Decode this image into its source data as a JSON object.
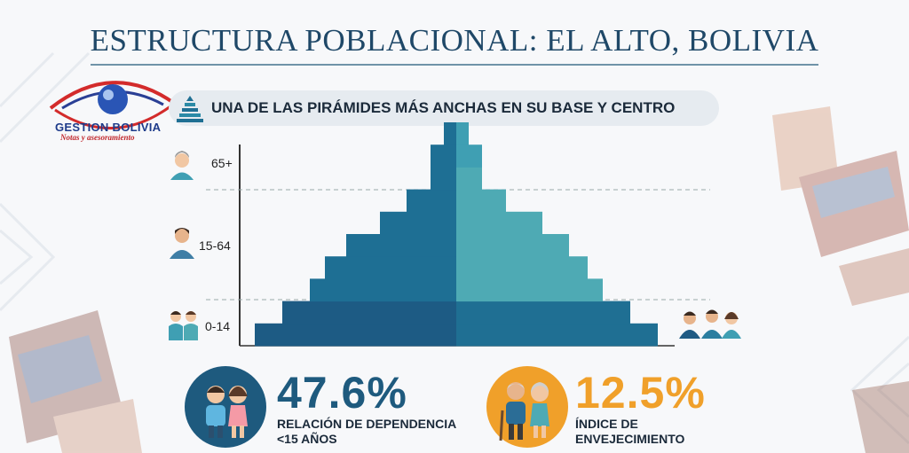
{
  "title": "ESTRUCTURA POBLACIONAL: EL ALTO, BOLIVIA",
  "logo": {
    "name": "GESTION BOLIVIA",
    "tagline": "Notas y asesoramiento"
  },
  "subtitle": "UNA DE LAS PIRÁMIDES MÁS ANCHAS EN SU BASE Y CENTRO",
  "chart_data": {
    "type": "population-pyramid",
    "age_groups": [
      "65+",
      "15-64",
      "0-14"
    ],
    "bands": [
      "0-14",
      "0-14",
      "15-64",
      "15-64",
      "15-64",
      "15-64",
      "15-64",
      "15-64",
      "65+",
      "65+"
    ],
    "left_values": [
      227,
      196,
      165,
      148,
      124,
      86,
      56,
      29,
      29,
      14
    ],
    "right_values": [
      227,
      196,
      165,
      148,
      127,
      97,
      56,
      29,
      29,
      14
    ],
    "left_color_by_group": {
      "0-14": "#1d5b84",
      "15-64": "#1e6f94",
      "65+": "#1e6f94"
    },
    "right_color_by_group": {
      "0-14": "#1f6f93",
      "15-64": "#4eaab4",
      "65+": "#3f9fb3"
    },
    "units": "relative width"
  },
  "stats": [
    {
      "value": "47.6%",
      "label_line1": "RELACIÓN DE DEPENDENCIA",
      "label_line2": "<15 AÑOS",
      "color": "#1e5a7e"
    },
    {
      "value": "12.5%",
      "label_line1": "ÍNDICE DE",
      "label_line2": "ENVEJECIMIENTO",
      "color": "#f0a02a"
    }
  ],
  "icons": [
    "elderly-woman-icon",
    "man-icon",
    "children-icon",
    "family-icon",
    "children-circle-icon",
    "elderly-couple-icon",
    "pyramid-icon",
    "eye-logo-icon"
  ]
}
